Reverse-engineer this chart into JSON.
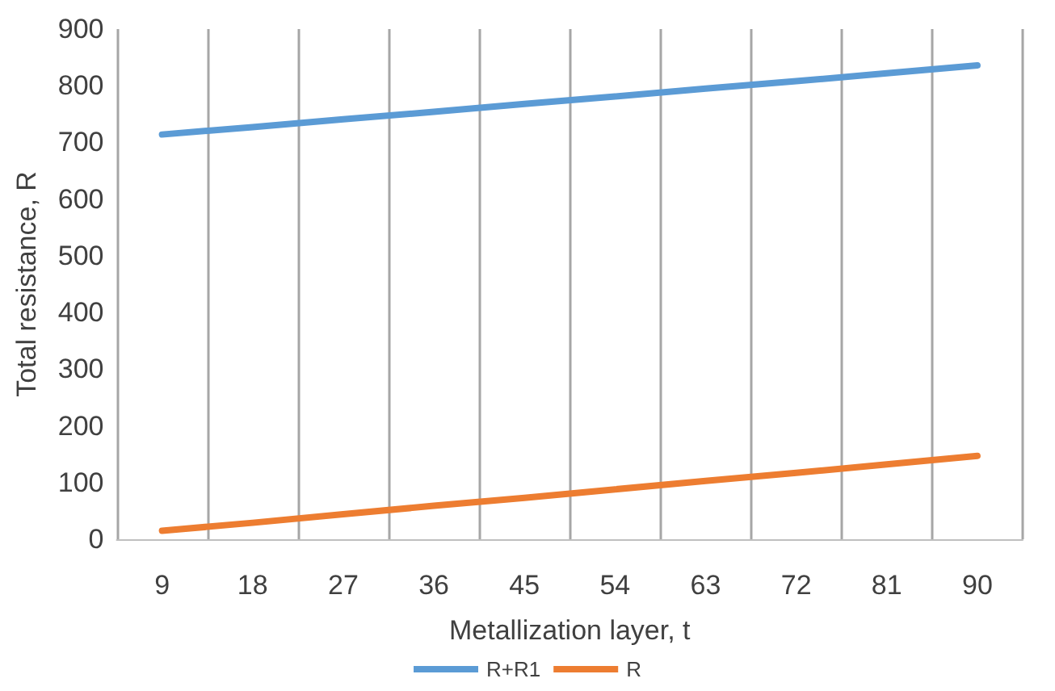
{
  "chart_data": {
    "type": "line",
    "xlabel": "Metallization layer, t",
    "ylabel": "Total resistance, R",
    "categories": [
      "9",
      "18",
      "27",
      "36",
      "45",
      "54",
      "63",
      "72",
      "81",
      "90"
    ],
    "series": [
      {
        "name": "R+R1",
        "color": "#5b9bd5",
        "values": [
          714,
          727,
          741,
          754,
          768,
          781,
          795,
          808,
          822,
          836
        ]
      },
      {
        "name": "R",
        "color": "#ed7d31",
        "values": [
          15,
          29,
          44,
          59,
          73,
          88,
          103,
          117,
          132,
          147
        ]
      }
    ],
    "ylim": [
      0,
      900
    ],
    "yticks": [
      0,
      100,
      200,
      300,
      400,
      500,
      600,
      700,
      800,
      900
    ],
    "grid": "x",
    "legend": "bottom",
    "marker": "none",
    "line_style": "solid"
  }
}
